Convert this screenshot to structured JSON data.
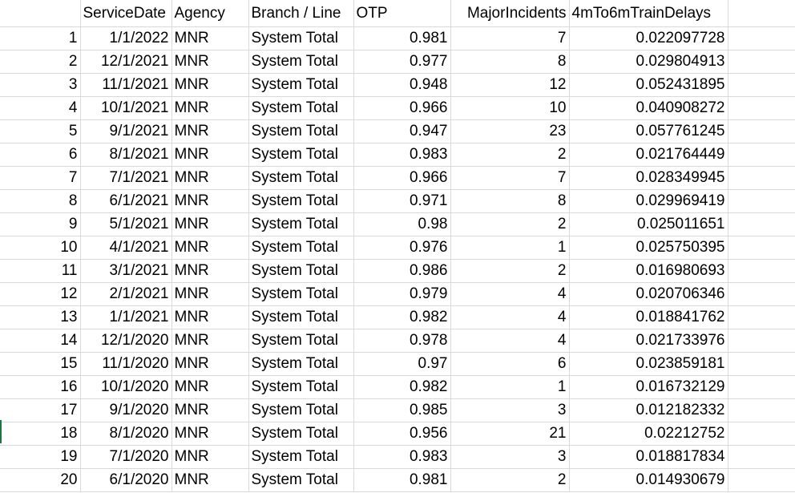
{
  "headers": [
    "ServiceDate",
    "Agency",
    "Branch / Line",
    "OTP",
    "MajorIncidents",
    "4mTo6mTrainDelays"
  ],
  "rows": [
    {
      "n": "1",
      "date": "1/1/2022",
      "agency": "MNR",
      "line": "System Total",
      "otp": "0.981",
      "incidents": "7",
      "delays": "0.022097728"
    },
    {
      "n": "2",
      "date": "12/1/2021",
      "agency": "MNR",
      "line": "System Total",
      "otp": "0.977",
      "incidents": "8",
      "delays": "0.029804913"
    },
    {
      "n": "3",
      "date": "11/1/2021",
      "agency": "MNR",
      "line": "System Total",
      "otp": "0.948",
      "incidents": "12",
      "delays": "0.052431895"
    },
    {
      "n": "4",
      "date": "10/1/2021",
      "agency": "MNR",
      "line": "System Total",
      "otp": "0.966",
      "incidents": "10",
      "delays": "0.040908272"
    },
    {
      "n": "5",
      "date": "9/1/2021",
      "agency": "MNR",
      "line": "System Total",
      "otp": "0.947",
      "incidents": "23",
      "delays": "0.057761245"
    },
    {
      "n": "6",
      "date": "8/1/2021",
      "agency": "MNR",
      "line": "System Total",
      "otp": "0.983",
      "incidents": "2",
      "delays": "0.021764449"
    },
    {
      "n": "7",
      "date": "7/1/2021",
      "agency": "MNR",
      "line": "System Total",
      "otp": "0.966",
      "incidents": "7",
      "delays": "0.028349945"
    },
    {
      "n": "8",
      "date": "6/1/2021",
      "agency": "MNR",
      "line": "System Total",
      "otp": "0.971",
      "incidents": "8",
      "delays": "0.029969419"
    },
    {
      "n": "9",
      "date": "5/1/2021",
      "agency": "MNR",
      "line": "System Total",
      "otp": "0.98",
      "incidents": "2",
      "delays": "0.025011651"
    },
    {
      "n": "10",
      "date": "4/1/2021",
      "agency": "MNR",
      "line": "System Total",
      "otp": "0.976",
      "incidents": "1",
      "delays": "0.025750395"
    },
    {
      "n": "11",
      "date": "3/1/2021",
      "agency": "MNR",
      "line": "System Total",
      "otp": "0.986",
      "incidents": "2",
      "delays": "0.016980693"
    },
    {
      "n": "12",
      "date": "2/1/2021",
      "agency": "MNR",
      "line": "System Total",
      "otp": "0.979",
      "incidents": "4",
      "delays": "0.020706346"
    },
    {
      "n": "13",
      "date": "1/1/2021",
      "agency": "MNR",
      "line": "System Total",
      "otp": "0.982",
      "incidents": "4",
      "delays": "0.018841762"
    },
    {
      "n": "14",
      "date": "12/1/2020",
      "agency": "MNR",
      "line": "System Total",
      "otp": "0.978",
      "incidents": "4",
      "delays": "0.021733976"
    },
    {
      "n": "15",
      "date": "11/1/2020",
      "agency": "MNR",
      "line": "System Total",
      "otp": "0.97",
      "incidents": "6",
      "delays": "0.023859181"
    },
    {
      "n": "16",
      "date": "10/1/2020",
      "agency": "MNR",
      "line": "System Total",
      "otp": "0.982",
      "incidents": "1",
      "delays": "0.016732129"
    },
    {
      "n": "17",
      "date": "9/1/2020",
      "agency": "MNR",
      "line": "System Total",
      "otp": "0.985",
      "incidents": "3",
      "delays": "0.012182332"
    },
    {
      "n": "18",
      "date": "8/1/2020",
      "agency": "MNR",
      "line": "System Total",
      "otp": "0.956",
      "incidents": "21",
      "delays": "0.02212752"
    },
    {
      "n": "19",
      "date": "7/1/2020",
      "agency": "MNR",
      "line": "System Total",
      "otp": "0.983",
      "incidents": "3",
      "delays": "0.018817834"
    },
    {
      "n": "20",
      "date": "6/1/2020",
      "agency": "MNR",
      "line": "System Total",
      "otp": "0.981",
      "incidents": "2",
      "delays": "0.014930679"
    }
  ],
  "colors": {
    "gridline": "#d9d9d9",
    "selected_row_marker": "#217346"
  }
}
